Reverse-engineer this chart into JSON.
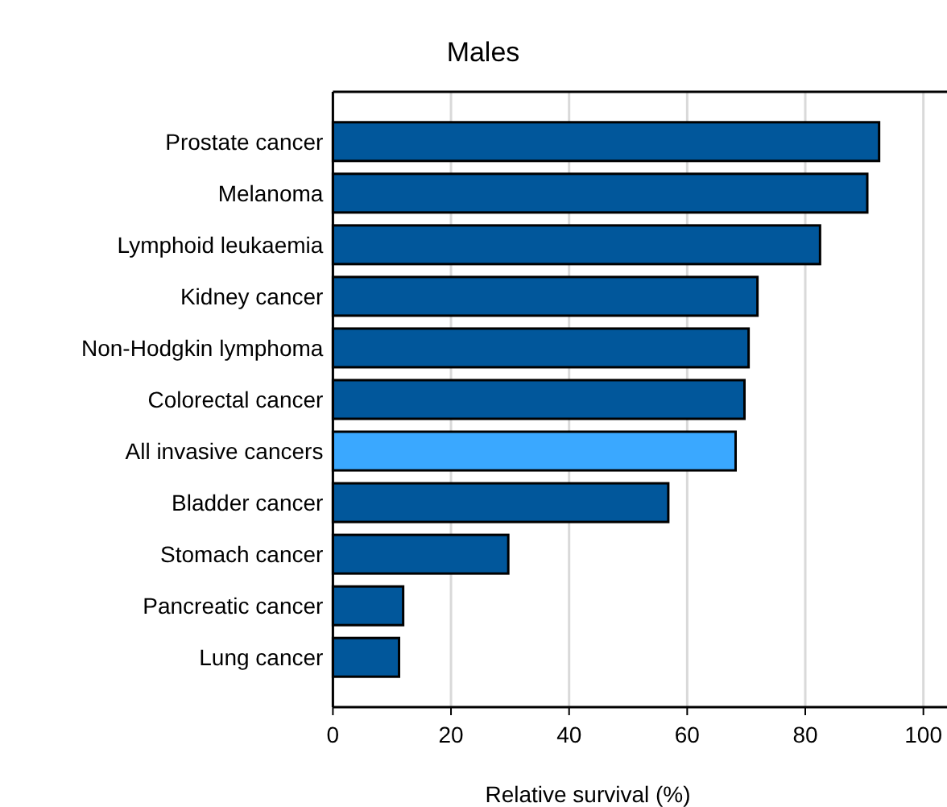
{
  "chart_data": {
    "type": "bar",
    "orientation": "horizontal",
    "title": "Males",
    "xlabel": "Relative survival (%)",
    "categories": [
      "Prostate cancer",
      "Melanoma",
      "Lymphoid leukaemia",
      "Kidney cancer",
      "Non-Hodgkin lymphoma",
      "Colorectal cancer",
      "All invasive cancers",
      "Bladder cancer",
      "Stomach cancer",
      "Pancreatic cancer",
      "Lung cancer"
    ],
    "values": [
      92.5,
      90.5,
      82.5,
      71.9,
      70.4,
      69.7,
      68.2,
      56.8,
      29.7,
      11.9,
      11.2
    ],
    "colors": [
      "#01579b",
      "#01579b",
      "#01579b",
      "#01579b",
      "#01579b",
      "#01579b",
      "#3aa8ff",
      "#01579b",
      "#01579b",
      "#01579b",
      "#01579b"
    ],
    "xlim": [
      0,
      104
    ],
    "xticks": [
      0,
      20,
      40,
      60,
      80,
      100
    ],
    "grid": "x"
  }
}
